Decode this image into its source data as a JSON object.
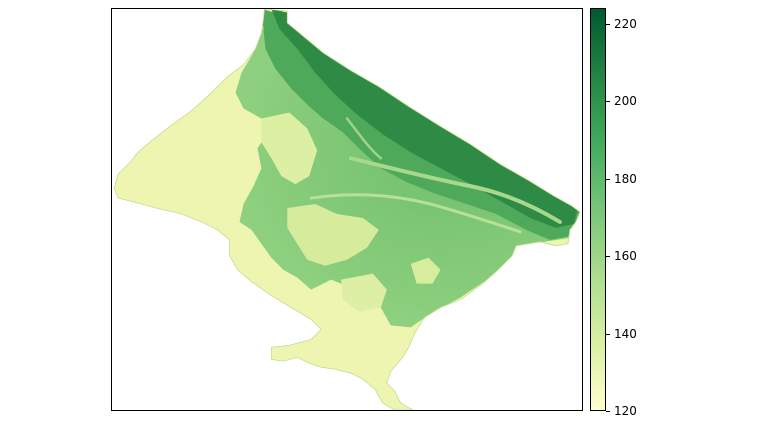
{
  "colorbar": {
    "min": 120,
    "max": 224,
    "ticks": [
      "120",
      "140",
      "160",
      "180",
      "200",
      "220"
    ],
    "colors": [
      "#ffffcc",
      "#d9f0a3",
      "#addd8e",
      "#78c679",
      "#41ab5d",
      "#238443",
      "#005a32"
    ]
  },
  "map": {
    "lowland_color": "#edf5b0",
    "midland_color": "#8ecf7e",
    "upland_color": "#4fa95a",
    "ridge_color": "#2e8b45"
  }
}
